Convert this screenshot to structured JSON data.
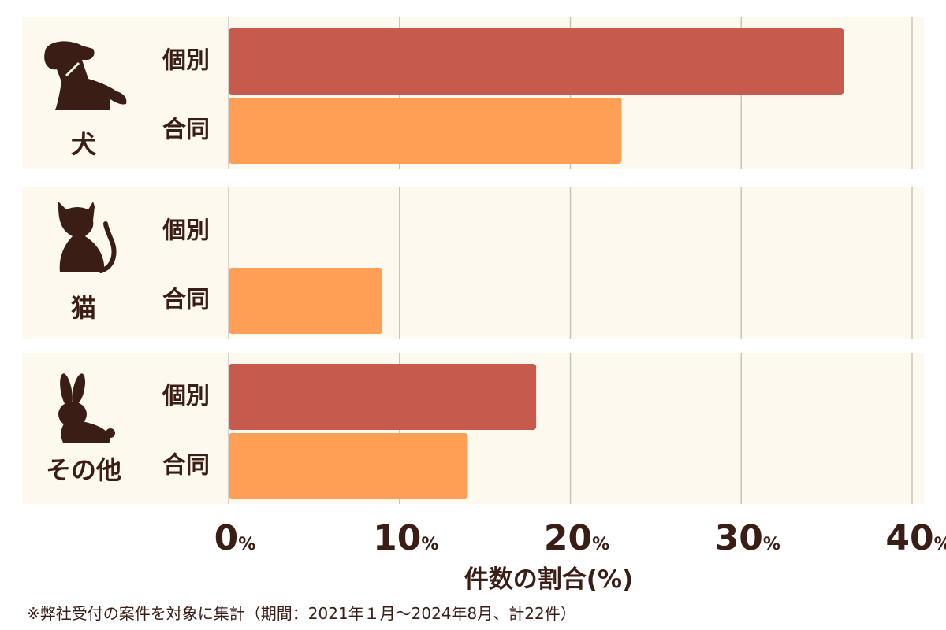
{
  "chart_data": {
    "type": "bar",
    "orientation": "horizontal",
    "xlabel": "件数の割合(%)",
    "xlim": [
      0,
      40
    ],
    "ticks": [
      0,
      10,
      20,
      30,
      40
    ],
    "tick_unit": "%",
    "grid": true,
    "groups": [
      {
        "label": "犬",
        "icon": "dog-icon",
        "bars": [
          {
            "type": "個別",
            "value": 36
          },
          {
            "type": "合同",
            "value": 23
          }
        ]
      },
      {
        "label": "猫",
        "icon": "cat-icon",
        "bars": [
          {
            "type": "個別",
            "value": 0
          },
          {
            "type": "合同",
            "value": 9
          }
        ]
      },
      {
        "label": "その他",
        "icon": "rabbit-icon",
        "bars": [
          {
            "type": "個別",
            "value": 18
          },
          {
            "type": "合同",
            "value": 14
          }
        ]
      }
    ],
    "colors": {
      "個別": "#c55a4d",
      "合同": "#ff9f55",
      "background": "#fdf9ef",
      "text": "#3a1d14"
    }
  },
  "footnote": "※弊社受付の案件を対象に集計（期間：2021年１月〜2024年8月、計22件）"
}
